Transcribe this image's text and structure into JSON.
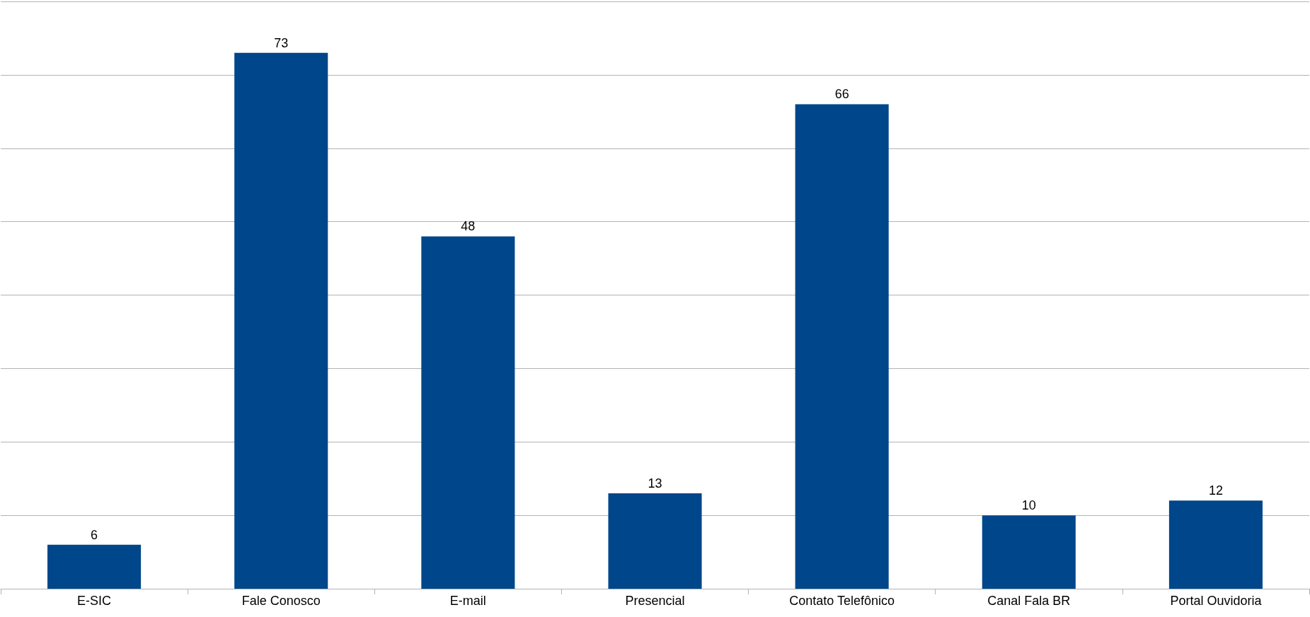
{
  "chart_data": {
    "type": "bar",
    "categories": [
      "E-SIC",
      "Fale Conosco",
      "E-mail",
      "Presencial",
      "Contato Telefônico",
      "Canal Fala BR",
      "Portal Ouvidoria"
    ],
    "values": [
      6,
      73,
      48,
      13,
      66,
      10,
      12
    ],
    "color": "#00468a",
    "data_labels": true,
    "grid": "y",
    "ylim": [
      0,
      80
    ],
    "yticks": [
      {
        "value": 0,
        "label": null
      },
      {
        "value": 10,
        "label": null
      },
      {
        "value": 20,
        "label": null
      },
      {
        "value": 30,
        "label": null
      },
      {
        "value": 40,
        "label": null
      },
      {
        "value": 50,
        "label": null
      },
      {
        "value": 60,
        "label": null
      },
      {
        "value": 70,
        "label": null
      },
      {
        "value": 80,
        "label": null
      }
    ],
    "tick_labels": "x"
  }
}
